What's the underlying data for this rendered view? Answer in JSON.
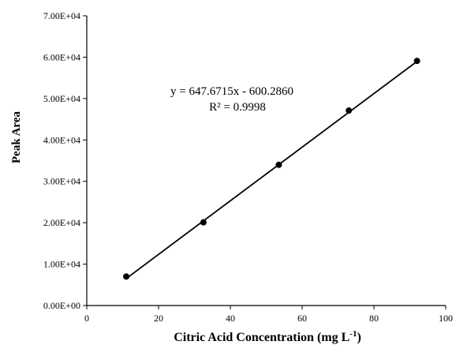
{
  "chart_data": {
    "type": "scatter",
    "title": "",
    "xlabel": "Citric Acid Concentration (mg L",
    "xlabel_superscript": "-1",
    "xlabel_suffix": ")",
    "ylabel": "Peak Area",
    "xlim": [
      0,
      100
    ],
    "ylim": [
      0,
      70000
    ],
    "x_ticks": [
      0,
      20,
      40,
      60,
      80,
      100
    ],
    "x_tick_labels": [
      "0",
      "20",
      "40",
      "60",
      "80",
      "100"
    ],
    "y_ticks": [
      0,
      10000,
      20000,
      30000,
      40000,
      50000,
      60000,
      70000
    ],
    "y_tick_labels": [
      "0.00E+00",
      "1.00E+04",
      "2.00E+04",
      "3.00E+04",
      "4.00E+04",
      "5.00E+04",
      "6.00E+04",
      "7.00E+04"
    ],
    "grid": false,
    "series": [
      {
        "x": [
          11,
          32.5,
          53.5,
          73,
          92
        ],
        "y": [
          7000,
          20100,
          34000,
          47100,
          59100
        ],
        "color": "#000000"
      }
    ],
    "trendline": {
      "slope": 647.6715,
      "intercept": -600.286,
      "x_range": [
        11,
        92
      ],
      "color": "#000000"
    },
    "annotations": {
      "equation": "y = 647.6715x - 600.2860",
      "r_squared": "R² = 0.9998"
    }
  }
}
